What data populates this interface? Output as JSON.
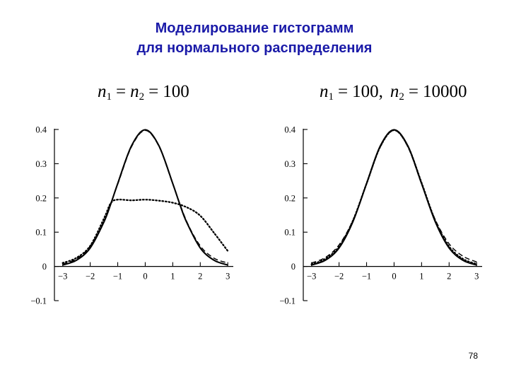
{
  "slide": {
    "title_line1": "Моделирование гистограмм",
    "title_line2": "для нормального распределения",
    "page_number": "78"
  },
  "left_formula": {
    "n1_sym": "n",
    "n1_sub": "1",
    "eq1": "=",
    "n2_sym": "n",
    "n2_sub": "2",
    "eq2": "=",
    "value": "100"
  },
  "right_formula": {
    "n1_sym": "n",
    "n1_sub": "1",
    "eq1": "=",
    "n1_value": "100,",
    "n2_sym": "n",
    "n2_sub": "2",
    "eq2": "=",
    "n2_value": "10000"
  },
  "chart_data": [
    {
      "type": "line",
      "title": "",
      "xlabel": "",
      "ylabel": "",
      "xlim": [
        -3.3,
        3.2
      ],
      "ylim": [
        -0.1,
        0.4
      ],
      "grid": false,
      "xticks": [
        -3,
        -2,
        -1,
        0,
        1,
        2,
        3
      ],
      "xtick_labels": [
        "−3",
        "−2",
        "−1",
        "0",
        "1",
        "2",
        "3"
      ],
      "yticks": [
        -0.1,
        0,
        0.1,
        0.2,
        0.3,
        0.4
      ],
      "ytick_labels": [
        "−0.1",
        "0",
        "0.1",
        "0.2",
        "0.3",
        "0.4"
      ],
      "series": [
        {
          "style": "solid",
          "x": [
            -3.0,
            -2.5,
            -2.0,
            -1.5,
            -1.25,
            -1.0,
            -0.5,
            0.0,
            0.5,
            1.0,
            1.25,
            1.5,
            2.0,
            2.5,
            3.0
          ],
          "y": [
            0.004,
            0.018,
            0.054,
            0.13,
            0.183,
            0.242,
            0.352,
            0.399,
            0.352,
            0.242,
            0.183,
            0.13,
            0.054,
            0.018,
            0.004
          ]
        },
        {
          "style": "dashed",
          "x": [
            -3.0,
            -2.5,
            -2.0,
            -1.5,
            -1.0,
            -0.5,
            0.0,
            0.5,
            1.0,
            1.5,
            2.0,
            2.5,
            3.0
          ],
          "y": [
            0.006,
            0.022,
            0.059,
            0.133,
            0.24,
            0.349,
            0.397,
            0.35,
            0.241,
            0.133,
            0.06,
            0.024,
            0.01
          ]
        },
        {
          "style": "dotted",
          "x": [
            -3.0,
            -2.5,
            -2.0,
            -1.5,
            -1.25,
            -1.0,
            -0.5,
            0.0,
            0.5,
            1.0,
            1.5,
            2.0,
            2.5,
            3.0
          ],
          "y": [
            0.01,
            0.025,
            0.06,
            0.14,
            0.185,
            0.195,
            0.193,
            0.195,
            0.192,
            0.186,
            0.173,
            0.148,
            0.098,
            0.045
          ]
        }
      ]
    },
    {
      "type": "line",
      "title": "",
      "xlabel": "",
      "ylabel": "",
      "xlim": [
        -3.3,
        3.2
      ],
      "ylim": [
        -0.1,
        0.4
      ],
      "grid": false,
      "xticks": [
        -3,
        -2,
        -1,
        0,
        1,
        2,
        3
      ],
      "xtick_labels": [
        "−3",
        "−2",
        "−1",
        "0",
        "1",
        "2",
        "3"
      ],
      "yticks": [
        -0.1,
        0,
        0.1,
        0.2,
        0.3,
        0.4
      ],
      "ytick_labels": [
        "−0.1",
        "0",
        "0.1",
        "0.2",
        "0.3",
        "0.4"
      ],
      "series": [
        {
          "style": "solid",
          "x": [
            -3.0,
            -2.5,
            -2.0,
            -1.5,
            -1.0,
            -0.5,
            0.0,
            0.5,
            1.0,
            1.5,
            2.0,
            2.5,
            3.0
          ],
          "y": [
            0.004,
            0.018,
            0.054,
            0.13,
            0.242,
            0.352,
            0.399,
            0.352,
            0.242,
            0.13,
            0.054,
            0.018,
            0.004
          ]
        },
        {
          "style": "dashed",
          "x": [
            -3.0,
            -2.5,
            -2.0,
            -1.5,
            -1.0,
            -0.5,
            0.0,
            0.5,
            1.0,
            1.5,
            2.0,
            2.5,
            3.0
          ],
          "y": [
            0.01,
            0.026,
            0.063,
            0.134,
            0.24,
            0.349,
            0.397,
            0.349,
            0.24,
            0.136,
            0.066,
            0.03,
            0.013
          ]
        },
        {
          "style": "dotted",
          "x": [
            -3.0,
            -2.5,
            -2.0,
            -1.5,
            -1.0,
            -0.5,
            0.0,
            0.5,
            1.0,
            1.5,
            2.0,
            2.5,
            3.0
          ],
          "y": [
            0.006,
            0.022,
            0.058,
            0.133,
            0.242,
            0.35,
            0.398,
            0.351,
            0.244,
            0.133,
            0.058,
            0.022,
            0.007
          ]
        }
      ]
    }
  ]
}
